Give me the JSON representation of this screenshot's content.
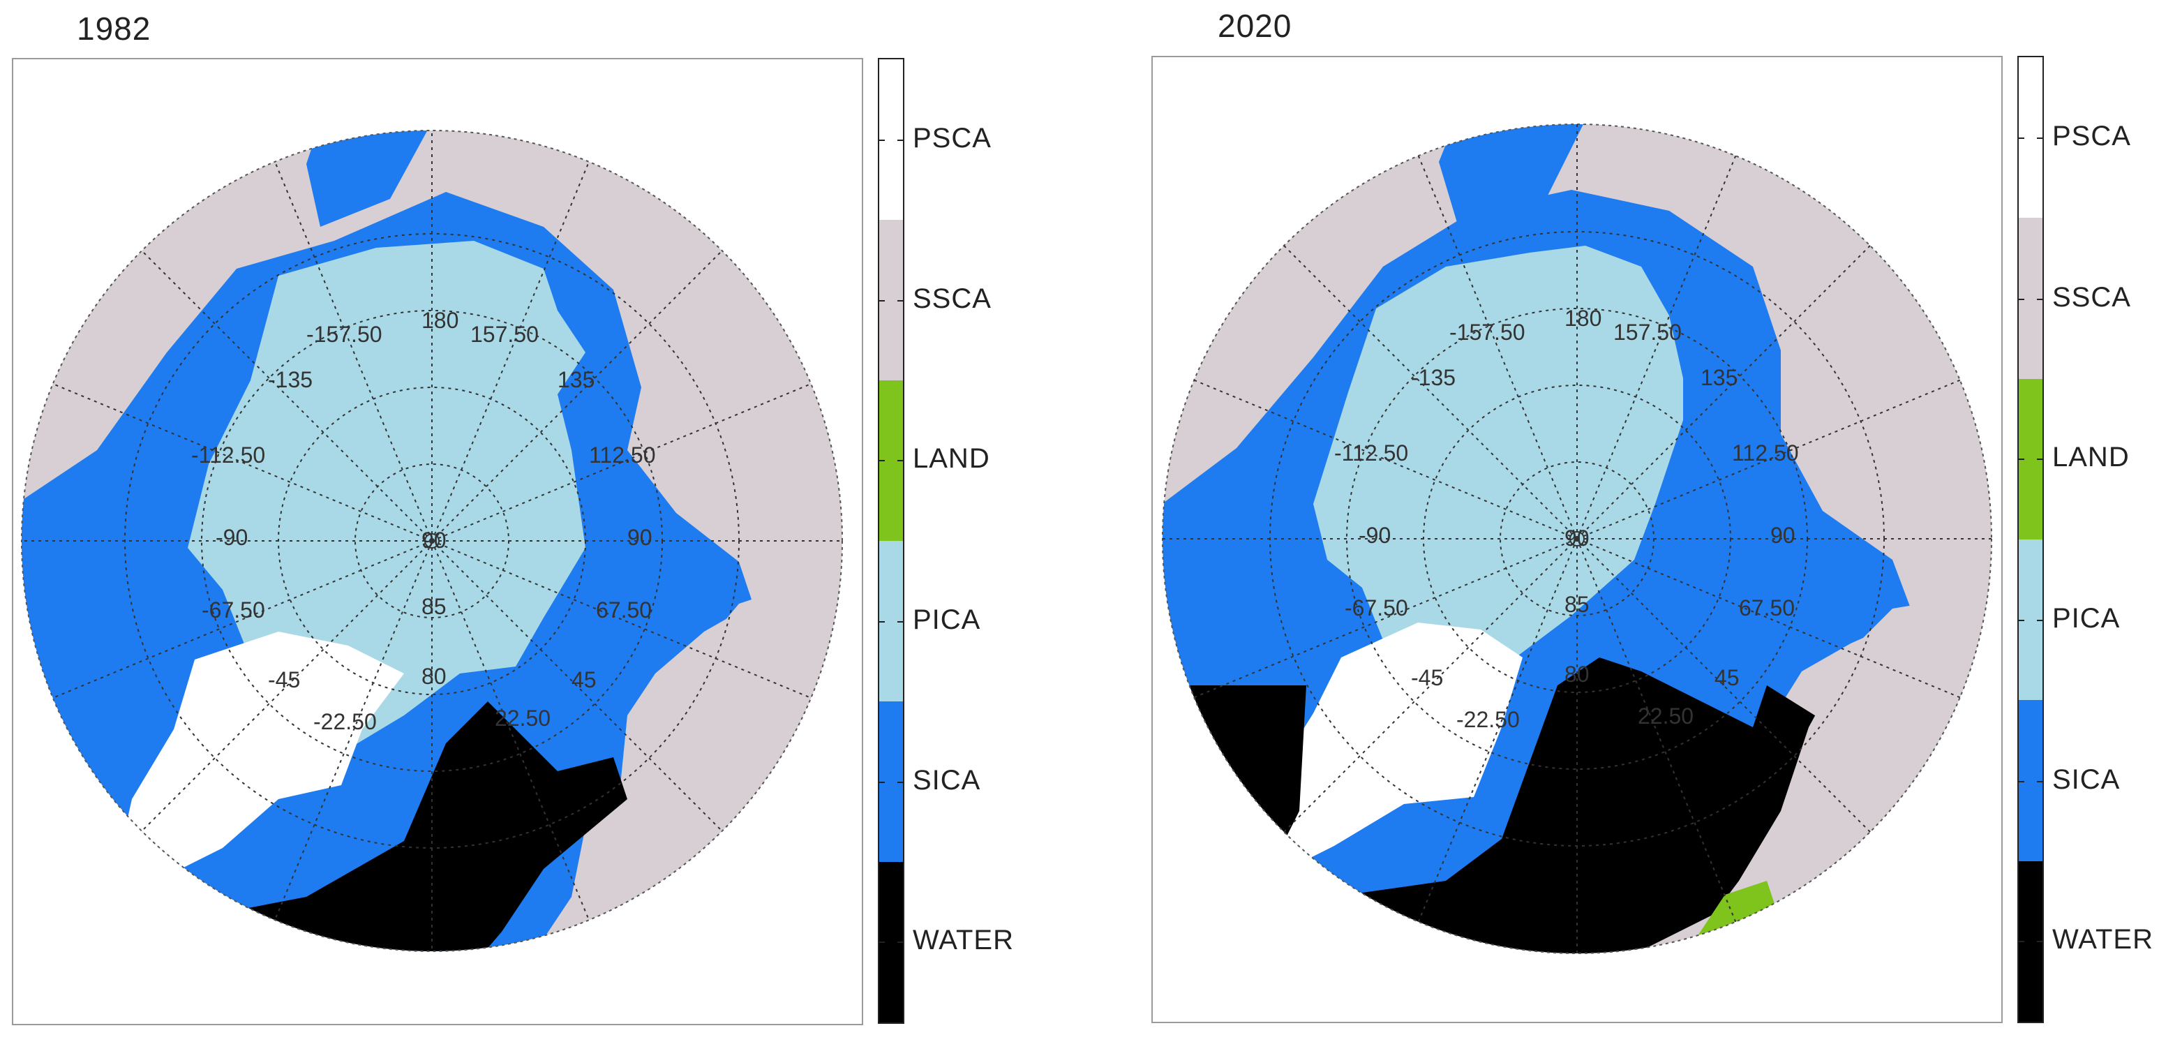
{
  "panels": [
    {
      "title": "1982"
    },
    {
      "title": "2020"
    }
  ],
  "legend": {
    "categories": [
      {
        "label": "PSCA",
        "color": "#ffffff"
      },
      {
        "label": "SSCA",
        "color": "#d7cfd4"
      },
      {
        "label": "LAND",
        "color": "#7fc41d"
      },
      {
        "label": "PICA",
        "color": "#a9d8e6"
      },
      {
        "label": "SICA",
        "color": "#1e7cf0"
      },
      {
        "label": "WATER",
        "color": "#000000"
      }
    ]
  },
  "grid_labels": {
    "longitude": [
      "180",
      "157.50",
      "-157.50",
      "135",
      "-135",
      "112.50",
      "-112.50",
      "90",
      "-90",
      "67.50",
      "-67.50",
      "45",
      "-45",
      "22.50",
      "-22.50"
    ],
    "latitude": [
      "90",
      "85",
      "80"
    ]
  }
}
